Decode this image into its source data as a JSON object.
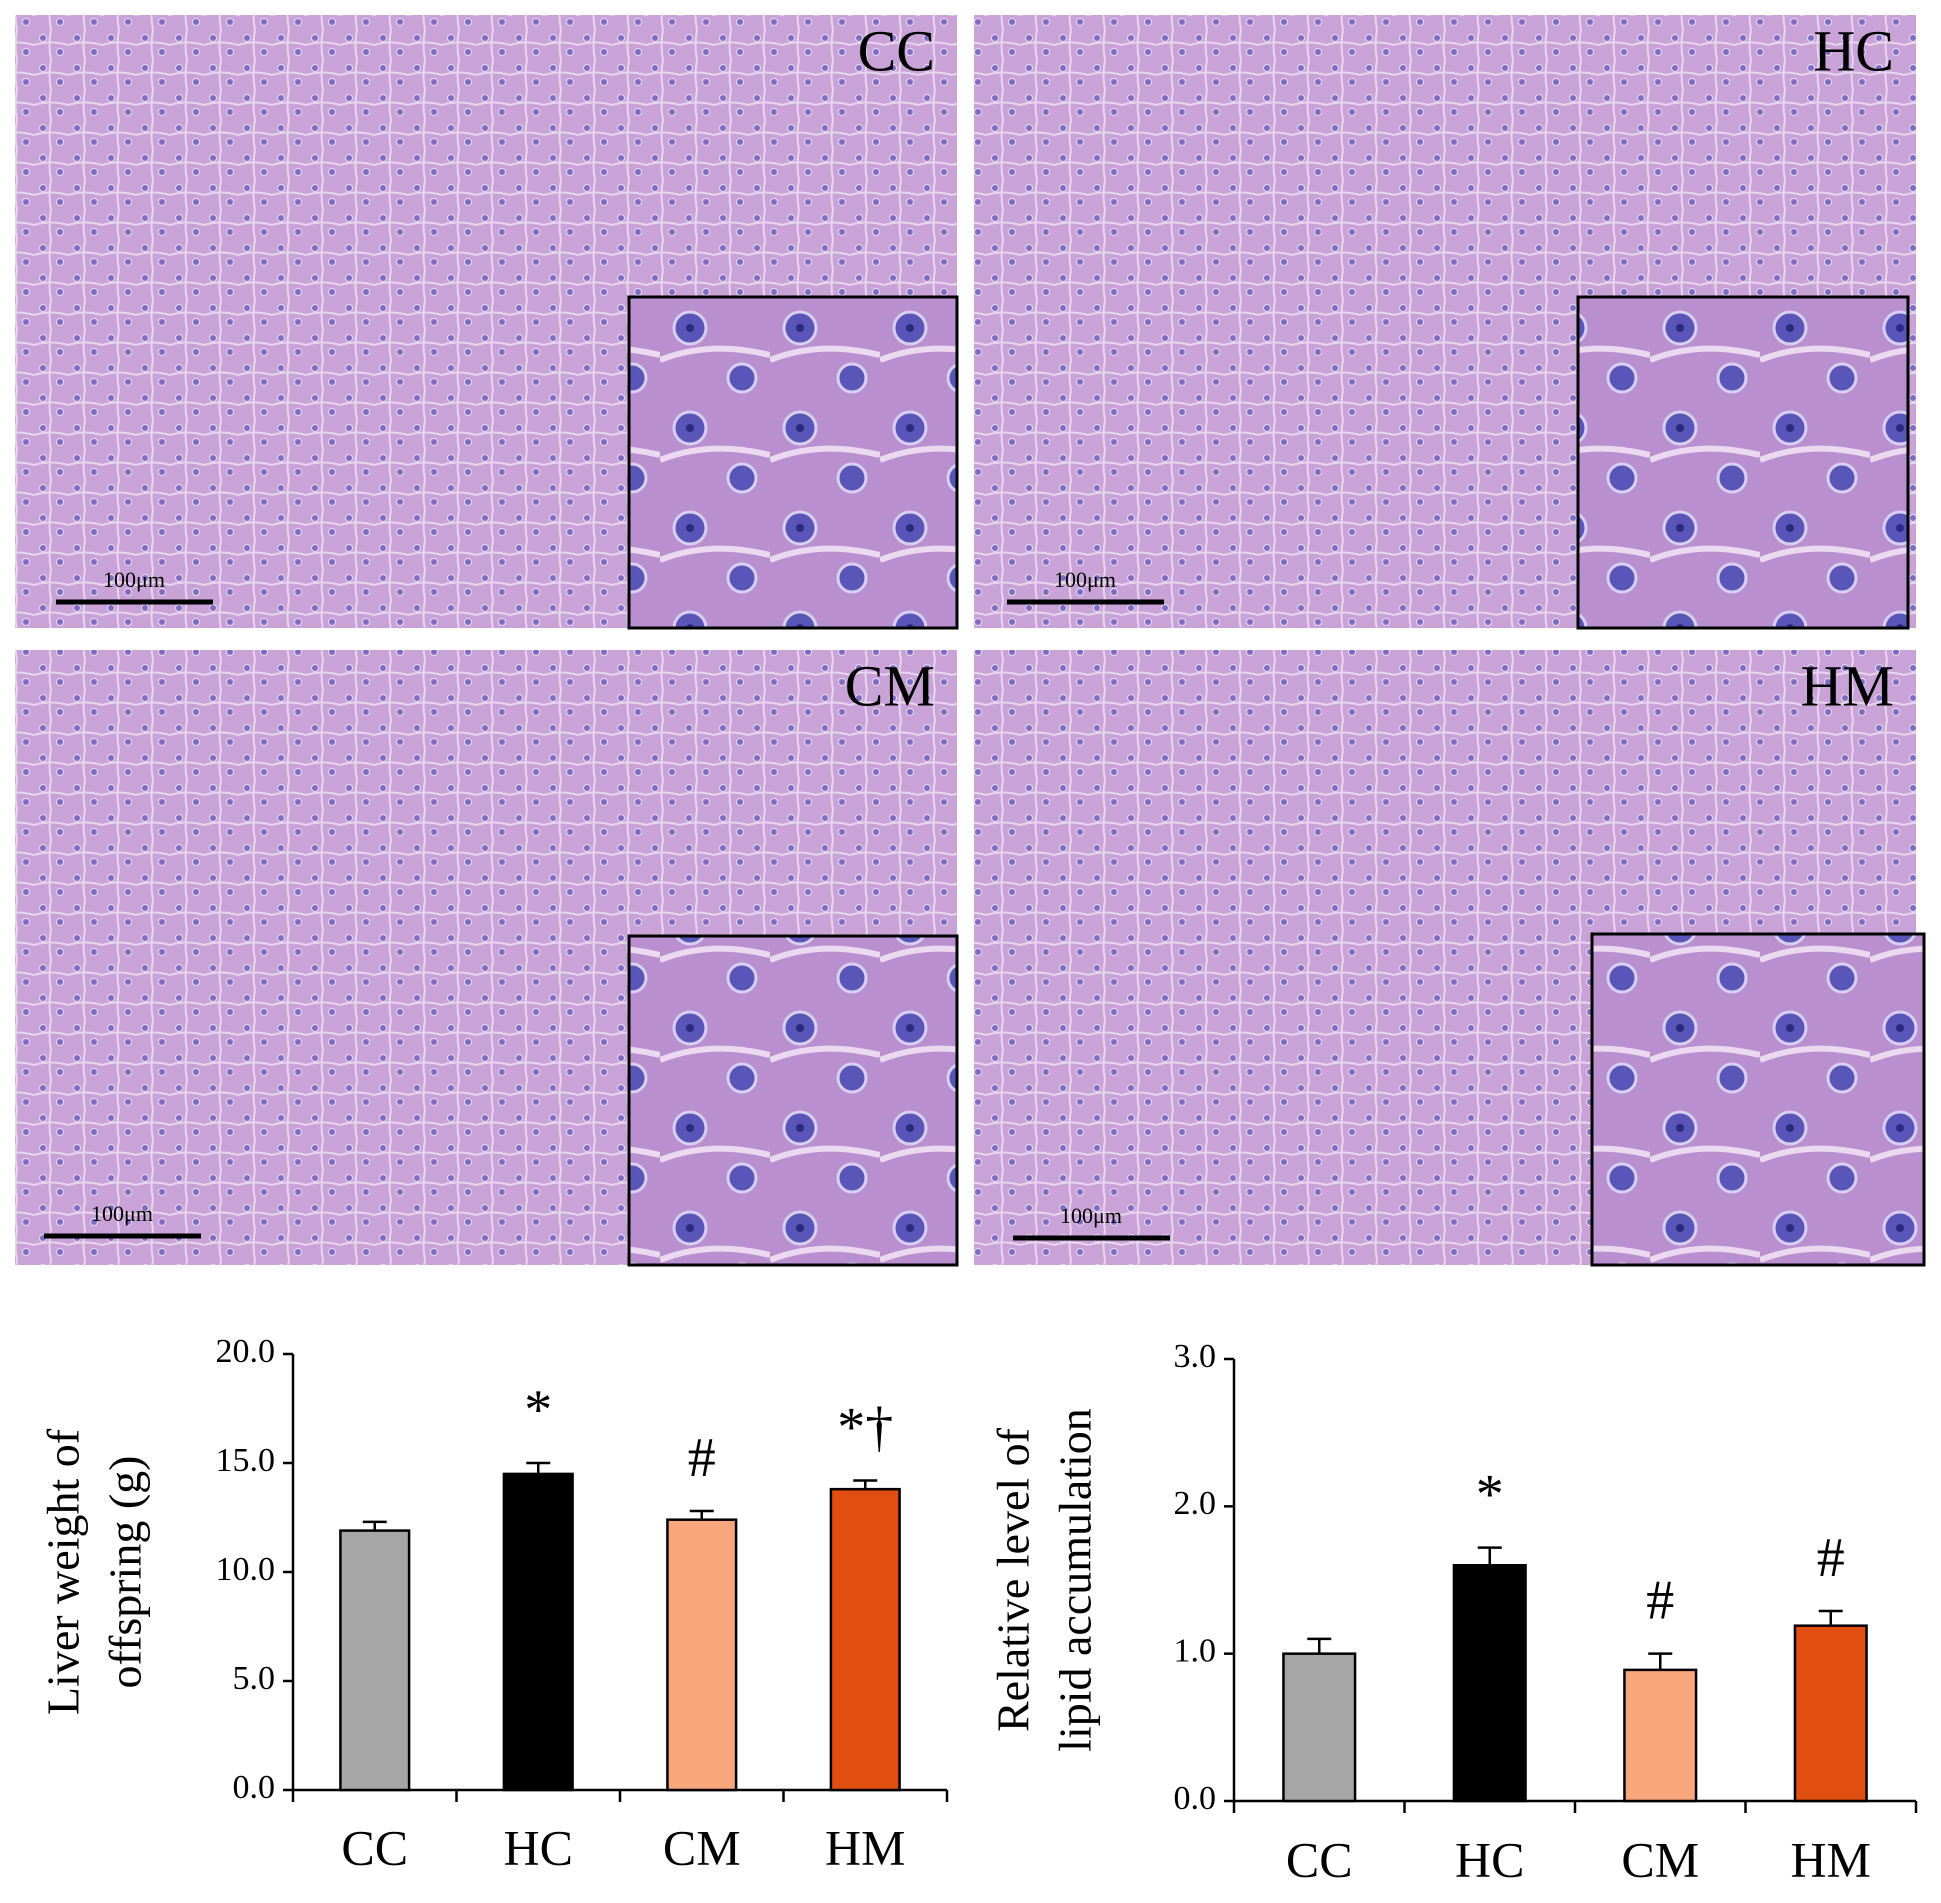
{
  "panels": [
    {
      "label": "CC",
      "scale_bar": "100μm"
    },
    {
      "label": "HC",
      "scale_bar": "100μm"
    },
    {
      "label": "CM",
      "scale_bar": "100μm"
    },
    {
      "label": "HM",
      "scale_bar": "100μm"
    }
  ],
  "chart_data": [
    {
      "type": "bar",
      "ylabel": [
        "Liver weight of",
        "offspring (g)"
      ],
      "categories": [
        "CC",
        "HC",
        "CM",
        "HM"
      ],
      "values": [
        11.9,
        14.5,
        12.4,
        13.8
      ],
      "errors": [
        0.4,
        0.5,
        0.4,
        0.4
      ],
      "colors": [
        "#a6a6a6",
        "#000000",
        "#f9a67c",
        "#e04e10"
      ],
      "annotations": [
        null,
        "*",
        "#",
        "*†"
      ],
      "ylim": [
        0,
        20
      ],
      "yticks": [
        {
          "value": 0,
          "label": "0.0"
        },
        {
          "value": 5,
          "label": "5.0"
        },
        {
          "value": 10,
          "label": "10.0"
        },
        {
          "value": 15,
          "label": "15.0"
        },
        {
          "value": 20,
          "label": "20.0"
        }
      ]
    },
    {
      "type": "bar",
      "ylabel": [
        "Relative level of",
        "lipid accumulation"
      ],
      "categories": [
        "CC",
        "HC",
        "CM",
        "HM"
      ],
      "values": [
        1.0,
        1.6,
        0.89,
        1.19
      ],
      "errors": [
        0.1,
        0.12,
        0.11,
        0.1
      ],
      "colors": [
        "#a6a6a6",
        "#000000",
        "#f9a67c",
        "#e04e10"
      ],
      "annotations": [
        null,
        "*",
        "#",
        "#"
      ],
      "ylim": [
        0,
        3
      ],
      "yticks": [
        {
          "value": 0,
          "label": "0.0"
        },
        {
          "value": 1,
          "label": "1.0"
        },
        {
          "value": 2,
          "label": "2.0"
        },
        {
          "value": 3,
          "label": "3.0"
        }
      ]
    }
  ]
}
